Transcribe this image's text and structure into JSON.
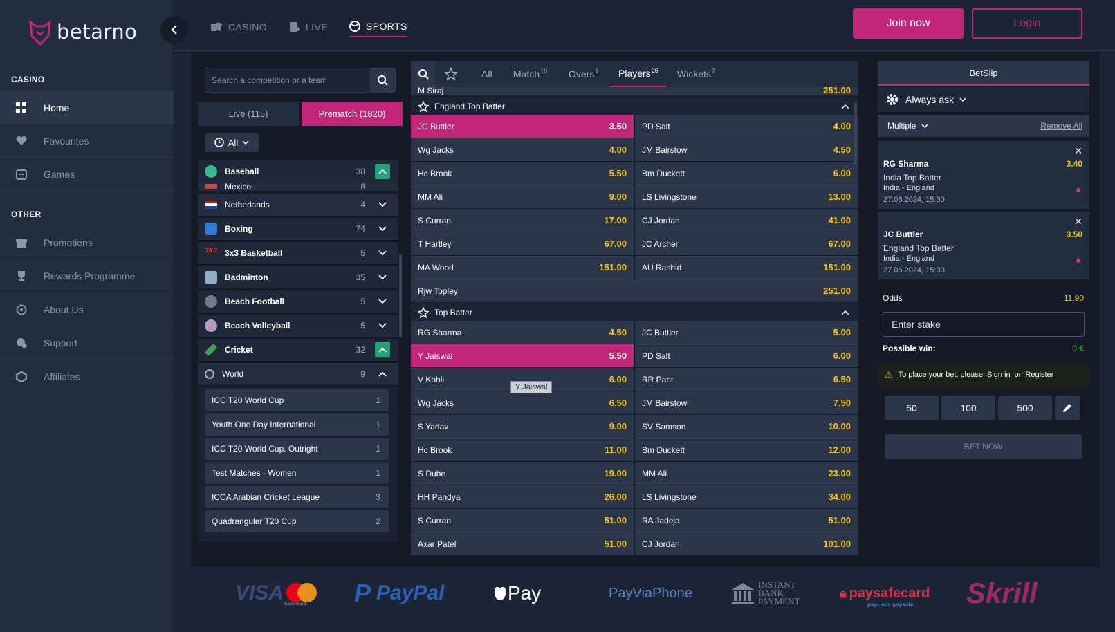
{
  "brand": {
    "name": "betarno",
    "accent": "#c2267a",
    "odds_color": "#f5c518"
  },
  "sidebar": {
    "casino_heading": "CASINO",
    "other_heading": "OTHER",
    "items": [
      {
        "label": "Home",
        "icon": "grid-icon"
      },
      {
        "label": "Favourites",
        "icon": "heart-icon"
      },
      {
        "label": "Games",
        "icon": "slot-machine-icon"
      },
      {
        "label": "Promotions",
        "icon": "gift-icon"
      },
      {
        "label": "Rewards Programme",
        "icon": "trophy-icon"
      },
      {
        "label": "About Us",
        "icon": "info-icon"
      },
      {
        "label": "Support",
        "icon": "chat-icon"
      },
      {
        "label": "Affiliates",
        "icon": "affiliates-icon"
      }
    ]
  },
  "nav": {
    "tabs": [
      {
        "label": "CASINO"
      },
      {
        "label": "LIVE"
      },
      {
        "label": "SPORTS"
      }
    ],
    "join": "Join now",
    "login": "Login"
  },
  "sports_panel": {
    "search_placeholder": "Search a competition or a team",
    "live_tab": "Live (115)",
    "prematch_tab": "Prematch (1820)",
    "filter": "All",
    "sports": [
      {
        "name": "Baseball",
        "count": "38"
      },
      {
        "name": "Mexico",
        "count": "8"
      },
      {
        "name": "Netherlands",
        "count": "4"
      },
      {
        "name": "Boxing",
        "count": "74"
      },
      {
        "name": "3x3 Basketball",
        "count": "5"
      },
      {
        "name": "Badminton",
        "count": "35"
      },
      {
        "name": "Beach Football",
        "count": "5"
      },
      {
        "name": "Beach Volleyball",
        "count": "5"
      },
      {
        "name": "Cricket",
        "count": "32"
      },
      {
        "name": "World",
        "count": "9"
      }
    ],
    "competitions": [
      {
        "name": "ICC T20 World Cup",
        "count": "1"
      },
      {
        "name": "Youth One Day International",
        "count": "1"
      },
      {
        "name": "ICC T20 World Cup. Outright",
        "count": "1"
      },
      {
        "name": "Test Matches - Women",
        "count": "1"
      },
      {
        "name": "ICCA Arabian Cricket League",
        "count": "3"
      },
      {
        "name": "Quadrangular T20 Cup",
        "count": "2"
      }
    ]
  },
  "market_tabs": [
    {
      "label": "All",
      "sup": ""
    },
    {
      "label": "Match",
      "sup": "10"
    },
    {
      "label": "Overs",
      "sup": "1"
    },
    {
      "label": "Players",
      "sup": "26"
    },
    {
      "label": "Wickets",
      "sup": "7"
    }
  ],
  "markets": {
    "partial_top": {
      "name": "M Siraj",
      "price": "251.00"
    },
    "england_top_batter": {
      "title": "England Top Batter",
      "rows": [
        [
          {
            "name": "JC Buttler",
            "price": "3.50"
          },
          {
            "name": "PD Salt",
            "price": "4.00"
          }
        ],
        [
          {
            "name": "Wg Jacks",
            "price": "4.00"
          },
          {
            "name": "JM Bairstow",
            "price": "4.50"
          }
        ],
        [
          {
            "name": "Hc Brook",
            "price": "5.50"
          },
          {
            "name": "Bm Duckett",
            "price": "6.00"
          }
        ],
        [
          {
            "name": "MM Ali",
            "price": "9.00"
          },
          {
            "name": "LS Livingstone",
            "price": "13.00"
          }
        ],
        [
          {
            "name": "S Curran",
            "price": "17.00"
          },
          {
            "name": "CJ Jordan",
            "price": "41.00"
          }
        ],
        [
          {
            "name": "T Hartley",
            "price": "67.00"
          },
          {
            "name": "JC Archer",
            "price": "67.00"
          }
        ],
        [
          {
            "name": "MA Wood",
            "price": "151.00"
          },
          {
            "name": "AU Rashid",
            "price": "151.00"
          }
        ]
      ],
      "last": {
        "name": "Rjw Topley",
        "price": "251.00"
      }
    },
    "top_batter": {
      "title": "Top Batter",
      "rows": [
        [
          {
            "name": "RG Sharma",
            "price": "4.50"
          },
          {
            "name": "JC Buttler",
            "price": "5.00"
          }
        ],
        [
          {
            "name": "Y Jaiswal",
            "price": "5.50"
          },
          {
            "name": "PD Salt",
            "price": "6.00"
          }
        ],
        [
          {
            "name": "V Kohli",
            "price": "6.00"
          },
          {
            "name": "RR Pant",
            "price": "6.50"
          }
        ],
        [
          {
            "name": "Wg Jacks",
            "price": "6.50"
          },
          {
            "name": "JM Bairstow",
            "price": "7.50"
          }
        ],
        [
          {
            "name": "S Yadav",
            "price": "9.00"
          },
          {
            "name": "SV Samson",
            "price": "10.00"
          }
        ],
        [
          {
            "name": "Hc Brook",
            "price": "11.00"
          },
          {
            "name": "Bm Duckett",
            "price": "12.00"
          }
        ],
        [
          {
            "name": "S Dube",
            "price": "19.00"
          },
          {
            "name": "MM Ali",
            "price": "23.00"
          }
        ],
        [
          {
            "name": "HH Pandya",
            "price": "26.00"
          },
          {
            "name": "LS Livingstone",
            "price": "34.00"
          }
        ],
        [
          {
            "name": "S Curran",
            "price": "51.00"
          },
          {
            "name": "RA Jadeja",
            "price": "51.00"
          }
        ],
        [
          {
            "name": "Axar Patel",
            "price": "51.00"
          },
          {
            "name": "CJ Jordan",
            "price": "101.00"
          }
        ]
      ]
    },
    "tooltip": "Y Jaiswal"
  },
  "betslip": {
    "title": "BetSlip",
    "always_ask": "Always ask",
    "mode": "Multiple",
    "remove_all": "Remove All",
    "bets": [
      {
        "name": "RG Sharma",
        "market": "India Top Batter",
        "event": "India - England",
        "date": "27.06.2024, 15:30",
        "price": "3.40"
      },
      {
        "name": "JC Buttler",
        "market": "England Top Batter",
        "event": "India - England",
        "date": "27.06.2024, 15:30",
        "price": "3.50"
      }
    ],
    "odds_label": "Odds",
    "odds_value": "11.90",
    "stake_placeholder": "Enter stake",
    "possible_win_label": "Possible win:",
    "possible_win_value": "0 €",
    "notice": "To place your bet, please",
    "sign_in": "Sign in",
    "or": "or",
    "register": "Register",
    "quick": [
      "50",
      "100",
      "500"
    ],
    "bet_now": "BET NOW"
  },
  "payments": [
    "VISA",
    "PayPal",
    "Pay",
    "PayViaPhone",
    "INSTANT BANK PAYMENT",
    "paysafecard",
    "Skrill"
  ],
  "payments_sub": {
    "paysafe": "paycash. paysafe.",
    "mastercard": "mastercard"
  }
}
